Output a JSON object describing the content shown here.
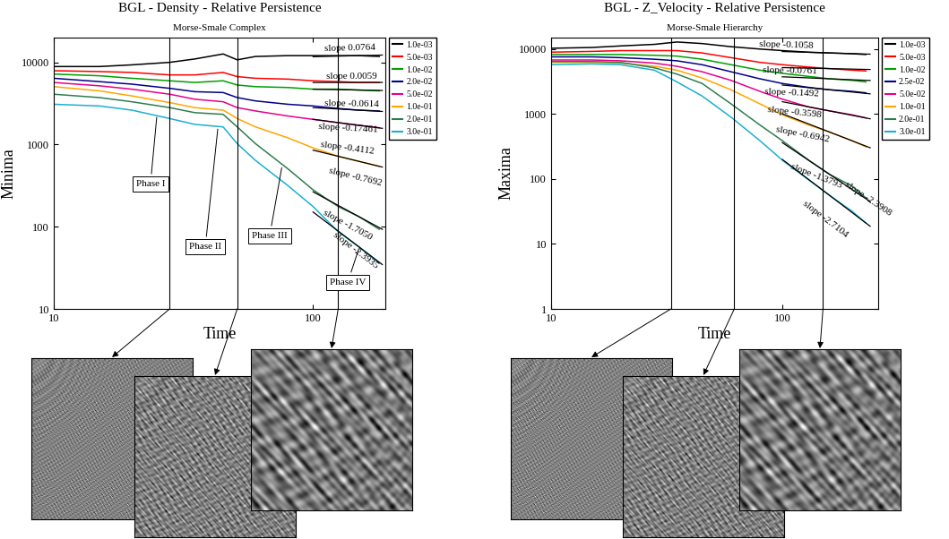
{
  "chart_data": [
    {
      "type": "line",
      "title": "BGL - Density - Relative Persistence",
      "subtitle": "Morse-Smale Complex",
      "x_label": "Time",
      "y_label": "Minima",
      "log": true,
      "grid": false,
      "legend": "upper left",
      "xlim": [
        10,
        190
      ],
      "ylim": [
        10,
        20000
      ],
      "xticks": [
        10,
        100
      ],
      "yticks": [
        10,
        100,
        1000,
        10000
      ],
      "vertical_lines": [
        28,
        51,
        125
      ],
      "phases": [
        {
          "text": "Phase I",
          "x": 23.6,
          "y": 330,
          "point_x": 25,
          "point_y": 2300
        },
        {
          "text": "Phase II",
          "x": 38.4,
          "y": 57,
          "point_x": 43,
          "point_y": 1650
        },
        {
          "text": "Phase III",
          "x": 68,
          "y": 77,
          "point_x": 76,
          "point_y": 560
        },
        {
          "text": "Phase IV",
          "x": 136,
          "y": 21,
          "point_x": 151,
          "point_y": 57
        }
      ],
      "x": [
        10,
        15,
        20,
        28,
        35,
        45,
        51,
        60,
        80,
        100,
        125,
        150,
        180
      ],
      "series": [
        {
          "name": "1.0e-03",
          "color": "#000000",
          "values": [
            8890,
            8890,
            9320,
            10000,
            10990,
            12650,
            10730,
            11790,
            12070,
            12070,
            12070,
            12070,
            11790
          ],
          "fit": {
            "x": [
              100,
              185
            ],
            "values": [
              11700,
              12260
            ]
          },
          "slope_label": {
            "text": "slope 0.0764",
            "x": 139,
            "y": 15000
          }
        },
        {
          "name": "5.0e-03",
          "color": "#ff0000",
          "values": [
            7910,
            7720,
            7540,
            7030,
            7030,
            7540,
            6705,
            6400,
            6250,
            5965,
            5825,
            5690,
            5690
          ],
          "fit": {
            "x": [
              100,
              185
            ],
            "values": [
              5680,
              5700
            ]
          },
          "slope_label": {
            "text": "slope 0.0059",
            "x": 141,
            "y": 6705
          }
        },
        {
          "name": "1.0e-02",
          "color": "#00a000",
          "values": [
            7200,
            6865,
            6400,
            5965,
            5690,
            5965,
            5300,
            5060,
            4940,
            4715,
            4715,
            4605,
            4500
          ],
          "fit": {
            "x": [
              100,
              185
            ],
            "values": [
              4720,
              4545
            ]
          },
          "slope_label": {
            "text": "slope -0.0614",
            "x": 141,
            "y": 3089
          }
        },
        {
          "name": "2.0e-02",
          "color": "#00008b",
          "values": [
            6400,
            5825,
            5430,
            4830,
            4395,
            4290,
            3728,
            3393,
            3089,
            2947,
            2747,
            2621,
            2560
          ],
          "fit": {
            "x": [
              100,
              185
            ],
            "values": [
              2813,
              2526
            ]
          },
          "slope_label": {
            "text": "slope -0.17461",
            "x": 136,
            "y": 1563
          }
        },
        {
          "name": "5.0e-02",
          "color": "#e6008a",
          "values": [
            5690,
            5180,
            4715,
            4095,
            3557,
            3315,
            2812,
            2560,
            2223,
            2024,
            1842,
            1717,
            1600
          ],
          "fit": {
            "x": [
              100,
              185
            ],
            "values": [
              2028,
              1575
            ]
          },
          "slope_label": {
            "text": "slope -0.4112",
            "x": 136,
            "y": 910
          }
        },
        {
          "name": "1.0e-01",
          "color": "#ffa500",
          "values": [
            5060,
            4500,
            3906,
            3237,
            2812,
            2621,
            2072,
            1638,
            1206,
            910,
            720,
            625,
            543
          ],
          "fit": {
            "x": [
              100,
              185
            ],
            "values": [
              854,
              532
            ]
          },
          "slope_label": {
            "text": "slope -0.7692",
            "x": 146,
            "y": 400
          }
        },
        {
          "name": "2.0e-01",
          "color": "#2e7d4f",
          "values": [
            4095,
            3728,
            3315,
            2812,
            2442,
            2330,
            1638,
            1024,
            506,
            281,
            176,
            133,
            93
          ],
          "fit": {
            "x": [
              100,
              185
            ],
            "values": [
              266,
              93
            ]
          },
          "slope_label": {
            "text": "slope -1.7050",
            "x": 136,
            "y": 105
          }
        },
        {
          "name": "3.0e-01",
          "color": "#1ab0d0",
          "values": [
            3089,
            2947,
            2621,
            2072,
            1758,
            1638,
            1024,
            640,
            316,
            176,
            87,
            57,
            36
          ],
          "fit": {
            "x": [
              100,
              185
            ],
            "values": [
              151,
              34.6
            ]
          },
          "slope_label": {
            "text": "slope -2.3935",
            "x": 146,
            "y": 51
          }
        }
      ]
    },
    {
      "type": "line",
      "title": "BGL - Z_Velocity - Relative Persistence",
      "subtitle": "Morse-Smale Hierarchy",
      "x_label": "Time",
      "y_label": "Maxima",
      "log": true,
      "grid": false,
      "legend": "upper left",
      "xlim": [
        10,
        260
      ],
      "ylim": [
        1,
        15000
      ],
      "xticks": [
        10,
        100
      ],
      "yticks": [
        1,
        10,
        100,
        1000,
        10000
      ],
      "vertical_lines": [
        33,
        62,
        150
      ],
      "x": [
        10,
        15,
        20,
        28,
        35,
        45,
        60,
        80,
        100,
        130,
        160,
        200,
        230
      ],
      "series": [
        {
          "name": "1.0e-03",
          "color": "#000000",
          "values": [
            10280,
            10570,
            11170,
            11810,
            12840,
            12150,
            10870,
            10000,
            9460,
            8950,
            8710,
            8470,
            8240
          ],
          "fit": {
            "x": [
              100,
              240
            ],
            "values": [
              9155,
              8345
            ]
          },
          "slope_label": {
            "text": "slope -0.1058",
            "x": 104,
            "y": 11500
          }
        },
        {
          "name": "5.0e-03",
          "color": "#ff0000",
          "values": [
            8950,
            9200,
            9460,
            9460,
            9460,
            8710,
            7370,
            6240,
            5740,
            5280,
            5000,
            4730,
            4600
          ],
          "fit": {
            "x": [
              100,
              240
            ],
            "values": [
              5180,
              4846
            ]
          },
          "slope_label": {
            "text": "slope -0.0761",
            "x": 108,
            "y": 4600
          }
        },
        {
          "name": "1.0e-02",
          "color": "#00a000",
          "values": [
            8240,
            8240,
            8240,
            8010,
            7790,
            6970,
            5740,
            4730,
            4230,
            3790,
            3485,
            3297,
            3119
          ],
          "fit": {
            "x": [
              100,
              240
            ],
            "values": [
              3740,
              3280
            ]
          },
          "slope_label": {
            "text": "slope -0.1492",
            "x": 110,
            "y": 2116
          }
        },
        {
          "name": "2.5e-02",
          "color": "#00008b",
          "values": [
            7580,
            7580,
            7370,
            6970,
            6597,
            5740,
            4472,
            3485,
            2951,
            2568,
            2363,
            2236,
            2115
          ],
          "fit": {
            "x": [
              100,
              240
            ],
            "values": [
              2796,
              2043
            ]
          },
          "slope_label": {
            "text": "slope -0.3598",
            "x": 113,
            "y": 1057
          }
        },
        {
          "name": "5.0e-02",
          "color": "#e6008a",
          "values": [
            6780,
            6780,
            6597,
            6070,
            5433,
            4472,
            3297,
            2236,
            1694,
            1284,
            1117,
            973,
            871
          ],
          "fit": {
            "x": [
              100,
              240
            ],
            "values": [
              1547,
              843
            ]
          },
          "slope_label": {
            "text": "slope -0.6942",
            "x": 122,
            "y": 486
          }
        },
        {
          "name": "1.0e-01",
          "color": "#ffa500",
          "values": [
            6240,
            6240,
            6070,
            5433,
            4730,
            3583,
            2363,
            1435,
            973,
            678,
            528,
            389,
            312
          ],
          "fit": {
            "x": [
              100,
              240
            ],
            "values": [
              1010,
              302
            ]
          },
          "slope_label": {
            "text": "slope -1.3793",
            "x": 140,
            "y": 110
          }
        },
        {
          "name": "2.0e-01",
          "color": "#2e7d4f",
          "values": [
            6415,
            6415,
            6240,
            5140,
            4117,
            2951,
            1435,
            678,
            389,
            195,
            118,
            78,
            51
          ],
          "fit": {
            "x": [
              100,
              240
            ],
            "values": [
              363,
              44.8
            ]
          },
          "slope_label": {
            "text": "slope -2.3908",
            "x": 235,
            "y": 50
          }
        },
        {
          "name": "3.0e-01",
          "color": "#1ab0d0",
          "values": [
            5740,
            5904,
            5740,
            4730,
            3119,
            1893,
            895,
            389,
            195,
            97,
            56,
            32,
            21
          ],
          "fit": {
            "x": [
              100,
              240
            ],
            "values": [
              200,
              18.7
            ]
          },
          "slope_label": {
            "text": "slope -2.7104",
            "x": 154,
            "y": 24.3
          }
        }
      ]
    }
  ]
}
